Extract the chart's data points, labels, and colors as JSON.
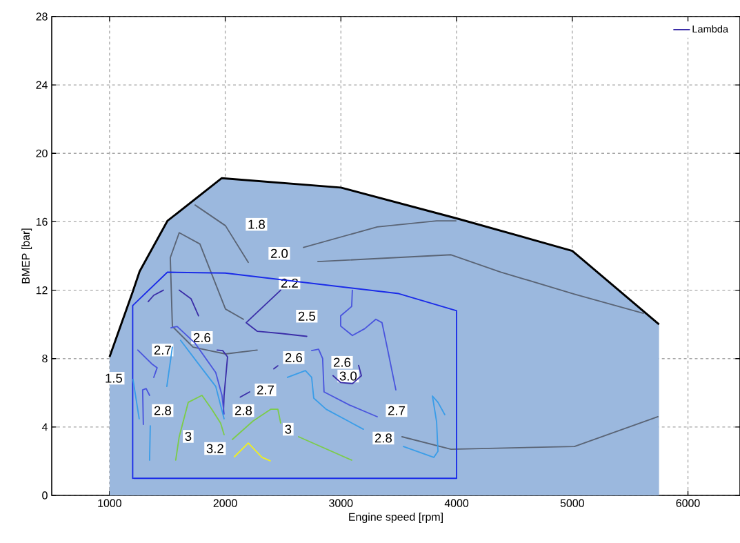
{
  "chart_data": {
    "type": "line",
    "xlabel": "Engine speed [rpm]",
    "ylabel": "BMEP [bar]",
    "xlim": [
      500,
      6450
    ],
    "ylim": [
      0,
      28
    ],
    "xticks": [
      1000,
      2000,
      3000,
      4000,
      5000,
      6000
    ],
    "yticks": [
      0,
      4,
      8,
      12,
      16,
      20,
      24,
      28
    ],
    "grid": true,
    "legend": "top right",
    "series": [
      {
        "type": "area",
        "color": "#9bb8de",
        "x": [
          1000,
          1200,
          1260,
          1500,
          1970,
          3000,
          4000,
          5000,
          5750
        ],
        "values": [
          8.1,
          11.9,
          13.1,
          16.05,
          18.55,
          18.0,
          16.2,
          14.3,
          10.0
        ]
      },
      {
        "color": "#5a6475",
        "x": [
          1739,
          2002,
          2199
        ],
        "values": [
          16.98,
          15.77,
          13.63
        ]
      },
      {
        "color": "#5a6475",
        "x": [
          2676,
          3314,
          3827,
          3994
        ],
        "values": [
          14.5,
          15.7,
          16.05,
          16.05
        ]
      },
      {
        "color": "#5a6475",
        "x": [
          2801,
          3952,
          4381,
          5019,
          5615
        ],
        "values": [
          13.67,
          14.07,
          13.06,
          11.77,
          10.65
        ]
      },
      {
        "color": "#5a6475",
        "x": [
          3528,
          3952,
          5019,
          5741
        ],
        "values": [
          3.43,
          2.7,
          2.86,
          4.6
        ]
      },
      {
        "color": "#5a6475",
        "x": [
          2157,
          2002,
          1781,
          1602,
          1525,
          1543,
          1722,
          2002,
          2276
        ],
        "values": [
          10.3,
          10.9,
          14.7,
          15.36,
          13.9,
          9.88,
          8.67,
          8.27,
          8.5
        ]
      },
      {
        "color": "#1a2be8",
        "x": [
          1200,
          1200,
          1500,
          2000,
          3500,
          4000,
          4000,
          1210
        ],
        "values": [
          1.0,
          11.1,
          13.05,
          13.0,
          11.8,
          10.8,
          1.0,
          1.0
        ]
      },
      {
        "name": "Lambda",
        "color": "#3b2ea8",
        "x": [
          1334,
          1382,
          1465
        ],
        "values": [
          11.33,
          11.7,
          12.0
        ]
      },
      {
        "color": "#3b2ea8",
        "x": [
          1602,
          1704,
          1769
        ],
        "values": [
          12.0,
          11.5,
          10.5
        ]
      },
      {
        "color": "#3b2ea8",
        "x": [
          1930,
          1978,
          2020,
          2008,
          1990,
          1984
        ],
        "values": [
          8.5,
          8.47,
          8.1,
          7.2,
          5.85,
          4.76
        ]
      },
      {
        "color": "#3b2ea8",
        "x": [
          2479,
          2181,
          2276,
          2479,
          2705
        ],
        "values": [
          12.0,
          10.1,
          9.6,
          9.47,
          9.3
        ]
      },
      {
        "color": "#3b2ea8",
        "x": [
          2932,
          2998,
          3099,
          3177,
          3153
        ],
        "values": [
          7.0,
          6.6,
          6.53,
          7.0,
          7.6
        ]
      },
      {
        "color": "#3b2ea8",
        "x": [
          2130,
          2211,
          2340,
          2420,
          2455
        ],
        "values": [
          5.75,
          6.05,
          null,
          7.4,
          7.58
        ]
      },
      {
        "color": "#4a55dd",
        "x": [
          3099,
          3093,
          2998,
          2998,
          3099,
          3206,
          3302,
          3355,
          3397,
          3475
        ],
        "values": [
          12.0,
          11.05,
          10.5,
          9.9,
          9.35,
          9.75,
          10.3,
          10.1,
          8.75,
          6.17
        ]
      },
      {
        "color": "#4a55dd",
        "x": [
          2747,
          2807,
          2842,
          2854,
          3075,
          3314
        ],
        "values": [
          8.47,
          8.55,
          8.0,
          6.05,
          5.28,
          4.6
        ]
      },
      {
        "color": "#4a55dd",
        "x": [
          1531,
          1584,
          1739,
          1918,
          1972,
          1990
        ],
        "values": [
          9.8,
          9.88,
          8.9,
          7.18,
          5.85,
          4.76
        ]
      },
      {
        "color": "#4a55dd",
        "x": [
          1244,
          1364,
          1411,
          1382
        ],
        "values": [
          8.5,
          7.7,
          7.46,
          6.9
        ]
      },
      {
        "color": "#4a55dd",
        "x": [
          1292,
          1286,
          1316,
          1346
        ],
        "values": [
          4.15,
          6.17,
          6.25,
          5.85
        ]
      },
      {
        "color": "#3a9de8",
        "x": [
          1614,
          1781,
          1918,
          1990
        ],
        "values": [
          9.07,
          7.58,
          6.37,
          4.48
        ]
      },
      {
        "color": "#3a9de8",
        "x": [
          1543,
          1495
        ],
        "values": [
          8.67,
          6.37
        ]
      },
      {
        "color": "#3a9de8",
        "x": [
          1203,
          1256
        ],
        "values": [
          6.77,
          4.48
        ]
      },
      {
        "color": "#3a9de8",
        "x": [
          1352,
          1346
        ],
        "values": [
          4.07,
          2.06
        ]
      },
      {
        "color": "#3a9de8",
        "x": [
          2538,
          2693,
          2747,
          2765,
          2872,
          3194
        ],
        "values": [
          6.9,
          7.3,
          6.9,
          5.69,
          5.04,
          3.87
        ]
      },
      {
        "color": "#3a9de8",
        "x": [
          3540,
          3803,
          3839,
          3827,
          3791,
          3839,
          3898
        ],
        "values": [
          2.86,
          2.22,
          2.58,
          4.31,
          5.81,
          5.44,
          4.72
        ]
      },
      {
        "color": "#7ccc4a",
        "x": [
          1572,
          1602,
          1680,
          1799,
          1883,
          1960,
          1990
        ],
        "values": [
          2.06,
          3.43,
          5.44,
          5.85,
          5.04,
          4.23,
          3.55
        ]
      },
      {
        "color": "#7ccc4a",
        "x": [
          2061,
          2240,
          2395,
          2455,
          2479
        ],
        "values": [
          3.27,
          4.35,
          5.04,
          5.04,
          4.23
        ]
      },
      {
        "color": "#7ccc4a",
        "x": [
          2634,
          3093
        ],
        "values": [
          3.43,
          2.06
        ]
      },
      {
        "color": "#f0f01e",
        "x": [
          2079,
          2199,
          2318,
          2389
        ],
        "values": [
          2.26,
          3.06,
          2.22,
          2.02
        ]
      }
    ],
    "annotations": [
      {
        "text": "1.5",
        "x": 1036,
        "y": 6.85
      },
      {
        "text": "1.8",
        "x": 2270,
        "y": 15.85
      },
      {
        "text": "2.0",
        "x": 2467,
        "y": 14.15
      },
      {
        "text": "2.2",
        "x": 2556,
        "y": 12.42
      },
      {
        "text": "2.5",
        "x": 2705,
        "y": 10.48
      },
      {
        "text": "3.0",
        "x": 3063,
        "y": 6.98
      },
      {
        "text": "2.7",
        "x": 1459,
        "y": 8.5
      },
      {
        "text": "2.6",
        "x": 1799,
        "y": 9.23
      },
      {
        "text": "2.8",
        "x": 1459,
        "y": 4.96
      },
      {
        "text": "3",
        "x": 1680,
        "y": 3.45
      },
      {
        "text": "3.2",
        "x": 1912,
        "y": 2.74
      },
      {
        "text": "2.8",
        "x": 2157,
        "y": 4.96
      },
      {
        "text": "2.7",
        "x": 2348,
        "y": 6.17
      },
      {
        "text": "2.6",
        "x": 2592,
        "y": 8.06
      },
      {
        "text": "2.6",
        "x": 3010,
        "y": 7.78
      },
      {
        "text": "3",
        "x": 2544,
        "y": 3.87
      },
      {
        "text": "2.7",
        "x": 3481,
        "y": 4.96
      },
      {
        "text": "2.8",
        "x": 3367,
        "y": 3.35
      }
    ]
  }
}
